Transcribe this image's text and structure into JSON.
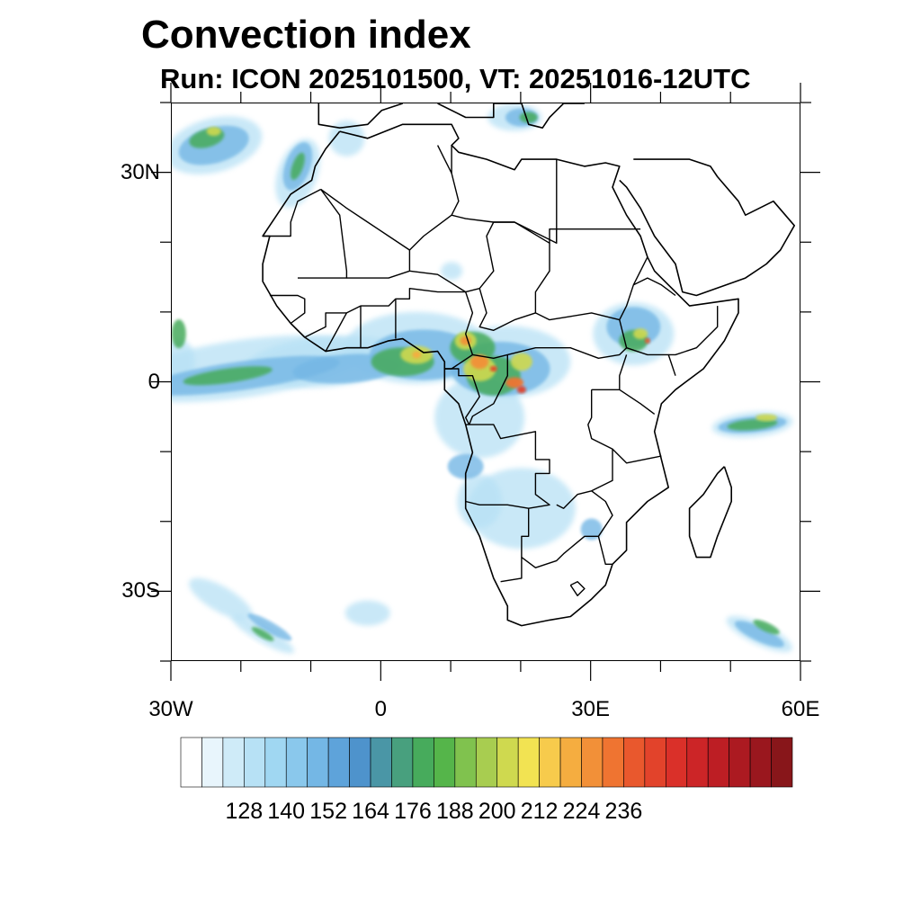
{
  "title": "Convection index",
  "subtitle": "Run: ICON 2025101500,  VT: 20251016-12UTC",
  "axes": {
    "lon_range": [
      -30,
      60
    ],
    "lat_range": [
      -40,
      40
    ],
    "y_ticks": [
      {
        "lat": 30,
        "label": "30N"
      },
      {
        "lat": 0,
        "label": "0"
      },
      {
        "lat": -30,
        "label": "30S"
      }
    ],
    "x_ticks": [
      {
        "lon": -30,
        "label": "30W"
      },
      {
        "lon": 0,
        "label": "0"
      },
      {
        "lon": 30,
        "label": "30E"
      },
      {
        "lon": 60,
        "label": "60E"
      }
    ]
  },
  "colorbar": {
    "colors": [
      "#ffffff",
      "#e8f5fc",
      "#cfebf8",
      "#b7e1f5",
      "#a0d7f2",
      "#8ac8ec",
      "#74b7e5",
      "#5ea3da",
      "#4e93cc",
      "#4a96a6",
      "#48a07e",
      "#47ab5c",
      "#55b54a",
      "#80c24e",
      "#a8cd50",
      "#cfd94f",
      "#f2e352",
      "#f7cb4c",
      "#f5ad40",
      "#f29038",
      "#ef7431",
      "#e9582d",
      "#e2432b",
      "#da3029",
      "#cc2527",
      "#bd1e24",
      "#ac1a21",
      "#9a171e",
      "#88161a"
    ],
    "labels": [
      "128",
      "140",
      "152",
      "164",
      "176",
      "188",
      "200",
      "212",
      "224",
      "236"
    ]
  },
  "map": {
    "region": "Africa and surrounding oceans",
    "hotspots": [
      {
        "name": "central-africa-core",
        "lat": 2,
        "lon": 16,
        "intensity": "high"
      },
      {
        "name": "cameroon-nigeria",
        "lat": 5,
        "lon": 10,
        "intensity": "high"
      },
      {
        "name": "ethiopia",
        "lat": 8,
        "lon": 38,
        "intensity": "medium"
      },
      {
        "name": "gulf-of-guinea-band",
        "lat": 4,
        "lon": -5,
        "intensity": "low"
      },
      {
        "name": "indian-ocean-east",
        "lat": -6,
        "lon": 55,
        "intensity": "medium"
      },
      {
        "name": "mediterranean-greece",
        "lat": 38,
        "lon": 20,
        "intensity": "medium"
      },
      {
        "name": "atlantic-nw",
        "lat": 33,
        "lon": -24,
        "intensity": "medium"
      },
      {
        "name": "south-atlantic-sw",
        "lat": -36,
        "lon": -16,
        "intensity": "medium"
      },
      {
        "name": "southern-indian-ocean",
        "lat": -37,
        "lon": 55,
        "intensity": "medium"
      },
      {
        "name": "southern-africa-interior",
        "lat": -22,
        "lon": 20,
        "intensity": "low"
      }
    ]
  }
}
